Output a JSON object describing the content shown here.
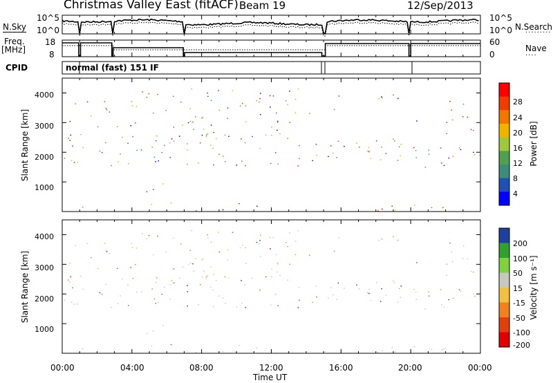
{
  "header": {
    "title": "Christmas Valley East (fitACF)",
    "beam": "Beam 19",
    "date": "12/Sep/2013"
  },
  "noise_panel": {
    "left_label": "N.Sky",
    "right_label": "N.Search",
    "left_ticks": [
      "10^5",
      "10^0"
    ],
    "right_ticks": [
      "10^5",
      "10^0"
    ]
  },
  "freq_panel": {
    "left_label_1": "Freq.",
    "left_label_2": "[MHz]",
    "right_label": "Nave",
    "left_ticks": [
      "18",
      "8"
    ],
    "right_ticks": [
      "60",
      "0"
    ]
  },
  "cpid": {
    "label": "CPID",
    "value": "normal (fast) 151 IF"
  },
  "colors": {
    "power_scale": [
      "#0000ff",
      "#2050b4",
      "#3c8c78",
      "#50a050",
      "#a0c83c",
      "#f0b400",
      "#f07800",
      "#f03c00",
      "#ff0000"
    ],
    "velocity_scale": [
      "#2040a0",
      "#30a030",
      "#80d040",
      "#c8c8c0",
      "#f0c040",
      "#f08020",
      "#e04010",
      "#e00000"
    ],
    "ground_scatter": "#c8c8c0"
  },
  "chart_data": [
    {
      "type": "heatmap",
      "panel": "power",
      "ylabel": "Slant Range [km]",
      "yticks": [
        "1000",
        "2000",
        "3000",
        "4000"
      ],
      "ylim": [
        0,
        4500
      ],
      "xlim_hours": [
        0,
        24
      ],
      "colorbar": {
        "title": "Power [dB]",
        "ticks": [
          "4",
          "8",
          "12",
          "16",
          "20",
          "24",
          "28"
        ],
        "range": [
          0,
          32
        ]
      }
    },
    {
      "type": "heatmap",
      "panel": "velocity",
      "ylabel": "Slant Range [km]",
      "yticks": [
        "1000",
        "2000",
        "3000",
        "4000"
      ],
      "ylim": [
        0,
        4500
      ],
      "xlim_hours": [
        0,
        24
      ],
      "colorbar": {
        "title": "Velocity [m s⁻¹]",
        "ticks": [
          "200",
          "100",
          "50",
          "15",
          "-15",
          "-50",
          "-100",
          "-200"
        ]
      }
    }
  ],
  "time_axis": {
    "xlabel": "Time UT",
    "ticks": [
      "00:00",
      "04:00",
      "08:00",
      "12:00",
      "16:00",
      "20:00",
      "00:00"
    ]
  }
}
